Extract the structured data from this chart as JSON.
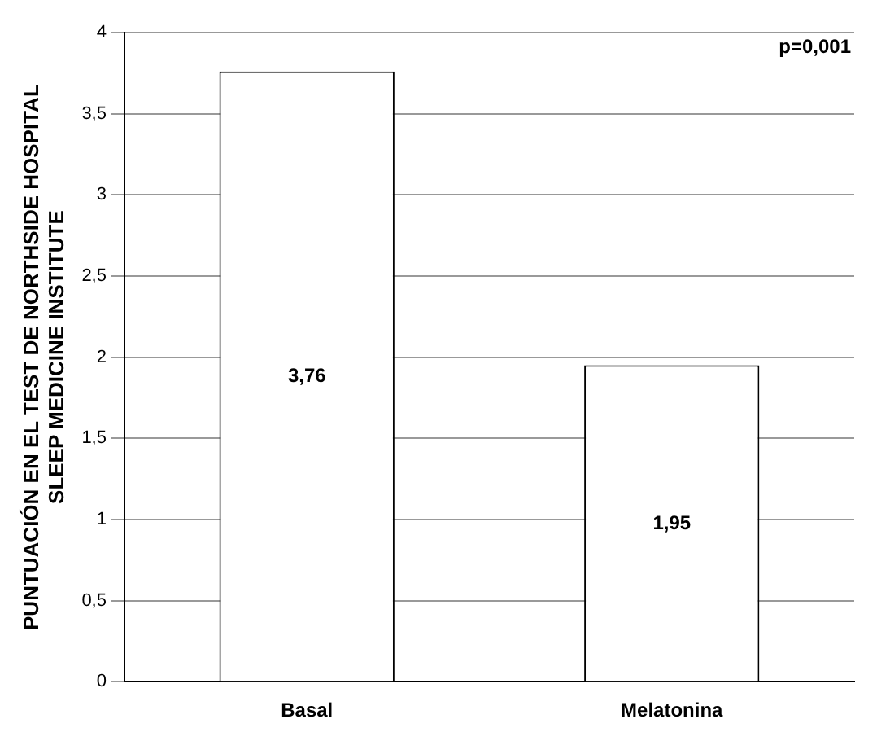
{
  "chart_data": {
    "type": "bar",
    "ylabel": "PUNTUACIÓN EN EL TEST DE NORTHSIDE HOSPITAL SLEEP MEDICINE INSTITUTE",
    "categories": [
      "Basal",
      "Melatonina"
    ],
    "values": [
      3.76,
      1.95
    ],
    "value_labels": [
      "3,76",
      "1,95"
    ],
    "color": "#ffffff",
    "ylim": [
      0,
      4
    ],
    "yticks": [
      0,
      {
        "value": 0.5,
        "label": "0,5"
      },
      1,
      {
        "value": 1.5,
        "label": "1,5"
      },
      2,
      {
        "value": 2.5,
        "label": "2,5"
      },
      3,
      {
        "value": 3.5,
        "label": "3,5"
      },
      4
    ],
    "grid": "y",
    "annotations": [
      "p=0,001"
    ]
  }
}
